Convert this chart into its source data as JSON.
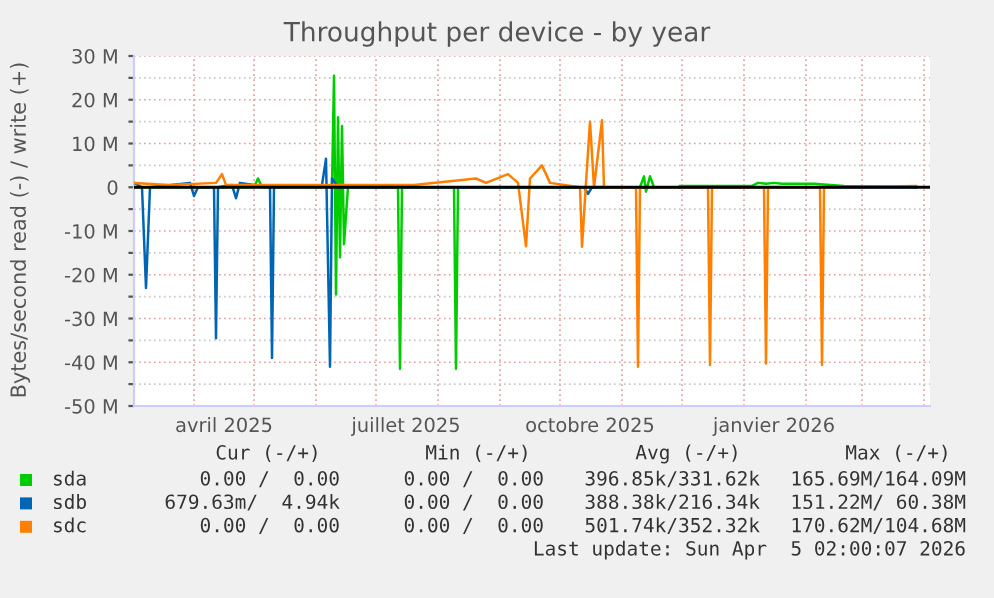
{
  "chart_data": {
    "type": "line",
    "title": "Throughput per device - by year",
    "ylabel": "Bytes/second read (-) / write (+)",
    "xlim": [
      "2025-03-02",
      "2026-04-04"
    ],
    "xticks": [
      {
        "value": "2025-04-01",
        "label": null
      },
      {
        "value": "2025-04-16",
        "label": "avril 2025"
      },
      {
        "value": "2025-05-01",
        "label": null
      },
      {
        "value": "2025-06-01",
        "label": null
      },
      {
        "value": "2025-07-01",
        "label": null
      },
      {
        "value": "2025-07-16",
        "label": "juillet 2025"
      },
      {
        "value": "2025-08-01",
        "label": null
      },
      {
        "value": "2025-09-01",
        "label": null
      },
      {
        "value": "2025-10-01",
        "label": null
      },
      {
        "value": "2025-10-16",
        "label": "octobre 2025"
      },
      {
        "value": "2025-11-01",
        "label": null
      },
      {
        "value": "2025-12-01",
        "label": null
      },
      {
        "value": "2026-01-01",
        "label": null
      },
      {
        "value": "2026-01-16",
        "label": "janvier 2026"
      },
      {
        "value": "2026-02-01",
        "label": null
      },
      {
        "value": "2026-03-01",
        "label": null
      },
      {
        "value": "2026-04-01",
        "label": null
      }
    ],
    "ylim": [
      -50,
      30
    ],
    "yticks": [
      {
        "value": -50,
        "label": "-50 M"
      },
      {
        "value": -45,
        "label": null
      },
      {
        "value": -40,
        "label": "-40 M"
      },
      {
        "value": -35,
        "label": null
      },
      {
        "value": -30,
        "label": "-30 M"
      },
      {
        "value": -25,
        "label": null
      },
      {
        "value": -20,
        "label": "-20 M"
      },
      {
        "value": -15,
        "label": null
      },
      {
        "value": -10,
        "label": "-10 M"
      },
      {
        "value": -5,
        "label": null
      },
      0,
      {
        "value": 5,
        "label": null
      },
      {
        "value": 10,
        "label": "10 M"
      },
      {
        "value": 15,
        "label": null
      },
      {
        "value": 20,
        "label": "20 M"
      },
      {
        "value": 25,
        "label": null
      },
      {
        "value": 30,
        "label": "30 M"
      }
    ],
    "grid": true,
    "legend": "bottom",
    "marker": "none",
    "line_style": "solid",
    "ref_lines": [
      {
        "axis": "y",
        "value": 0,
        "color": "#000000"
      }
    ],
    "series": [
      {
        "name": "sda",
        "color": "#00cc00",
        "x": [
          "2025-03-02",
          "2025-05-01",
          "2025-05-03",
          "2025-05-05",
          "2025-06-09",
          "2025-06-10",
          "2025-06-11",
          "2025-06-12",
          "2025-06-13",
          "2025-06-14",
          "2025-06-15",
          "2025-06-17",
          "2025-07-12",
          "2025-07-13",
          "2025-07-14",
          "2025-08-09",
          "2025-08-10",
          "2025-08-11",
          "2025-11-10",
          "2025-11-12",
          "2025-11-13",
          "2025-11-15",
          "2025-11-17",
          "2025-11-22",
          "2025-11-30",
          "2026-01-05",
          "2026-01-08",
          "2026-01-12",
          "2026-01-16",
          "2026-01-20",
          "2026-02-05",
          "2026-02-20",
          "2026-03-28"
        ],
        "values": [
          0,
          0,
          2,
          0,
          0,
          25.5,
          -24.5,
          16,
          -16,
          14,
          -13,
          0,
          0,
          -41.5,
          0,
          0,
          -41.5,
          0,
          0,
          2.5,
          -1,
          2.5,
          0,
          null,
          0.3,
          0.3,
          1,
          0.8,
          1,
          0.8,
          0.8,
          0.3,
          0
        ]
      },
      {
        "name": "sdb",
        "color": "#0066b3",
        "x": [
          "2025-03-02",
          "2025-03-06",
          "2025-03-08",
          "2025-03-10",
          "2025-03-30",
          "2025-04-01",
          "2025-04-03",
          "2025-04-11",
          "2025-04-12",
          "2025-04-13",
          "2025-04-20",
          "2025-04-22",
          "2025-04-24",
          "2025-05-09",
          "2025-05-10",
          "2025-05-11",
          "2025-06-04",
          "2025-06-06",
          "2025-06-08",
          "2025-06-09",
          "2025-06-12",
          "2025-10-13",
          "2025-10-15",
          "2025-10-17",
          "2026-03-28"
        ],
        "values": [
          1,
          0,
          -23,
          0,
          1,
          -2,
          0,
          0,
          -34.5,
          0,
          0.5,
          -2.5,
          1,
          0,
          -39,
          0,
          0.5,
          6.5,
          -41,
          2,
          0,
          0,
          -1.5,
          0,
          0
        ]
      },
      {
        "name": "sdc",
        "color": "#ff8000",
        "x": [
          "2025-03-02",
          "2025-03-20",
          "2025-04-12",
          "2025-04-15",
          "2025-04-17",
          "2025-05-15",
          "2025-07-20",
          "2025-08-20",
          "2025-08-25",
          "2025-09-05",
          "2025-09-10",
          "2025-09-14",
          "2025-09-16",
          "2025-09-22",
          "2025-09-26",
          "2025-10-11",
          "2025-10-12",
          "2025-10-14",
          "2025-10-16",
          "2025-10-18",
          "2025-10-22",
          "2025-10-23",
          "2025-11-08",
          "2025-11-09",
          "2025-11-10",
          "2025-12-14",
          "2025-12-15",
          "2025-12-16",
          "2026-01-11",
          "2026-01-12",
          "2026-01-13",
          "2026-02-08",
          "2026-02-09",
          "2026-02-10",
          "2026-03-28"
        ],
        "values": [
          1,
          0.5,
          1,
          3,
          0.5,
          0.5,
          0.5,
          2,
          1,
          3,
          1,
          -13.5,
          2,
          5,
          1,
          0,
          -13.6,
          1,
          15,
          0,
          15.3,
          0,
          0,
          -41,
          0,
          0,
          -40.6,
          0,
          0,
          -40.3,
          0,
          0,
          -40.6,
          0,
          0.3
        ]
      }
    ],
    "annotations": [
      "Cur (-/+)",
      "Min (-/+)",
      "Avg (-/+)",
      "Max (-/+)",
      "0.00 /  0.00",
      "0.00 /  0.00",
      "396.85k/331.62k",
      "165.69M/164.09M",
      "679.63m/  4.94k",
      "0.00 /  0.00",
      "388.38k/216.34k",
      "151.22M/ 60.38M",
      "0.00 /  0.00",
      "0.00 /  0.00",
      "501.74k/352.32k",
      "170.62M/104.68M",
      "Last update: Sun Apr  5 02:00:07 2026"
    ]
  }
}
